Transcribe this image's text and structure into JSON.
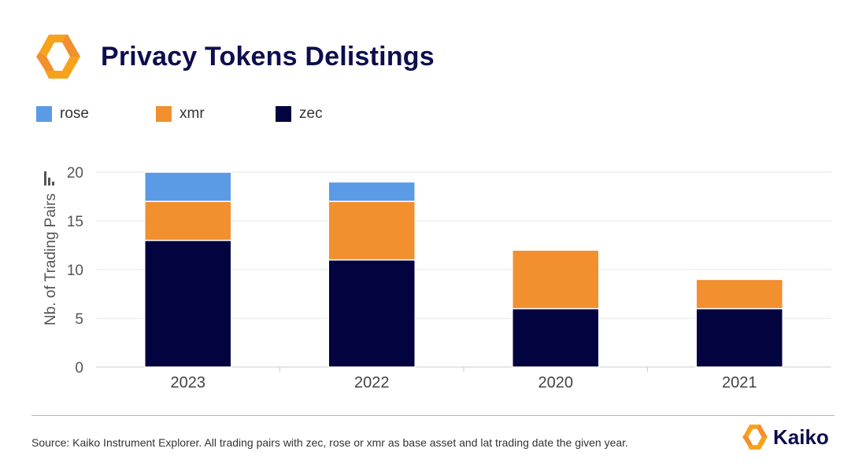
{
  "header": {
    "title": "Privacy Tokens Delistings",
    "logo_icon": "kaiko-logo-icon"
  },
  "colors": {
    "rose": "#5b9be6",
    "xmr": "#f28f2e",
    "zec": "#03033f",
    "title": "#0d0d4f",
    "axis_text": "#555555",
    "grid": "#e6e6e6"
  },
  "legend": [
    {
      "label": "rose",
      "color": "#5b9be6"
    },
    {
      "label": "xmr",
      "color": "#f28f2e"
    },
    {
      "label": "zec",
      "color": "#03033f"
    }
  ],
  "chart_data": {
    "type": "bar",
    "stacked": true,
    "categories": [
      "2023",
      "2022",
      "2020",
      "2021"
    ],
    "series": [
      {
        "name": "zec",
        "values": [
          13,
          11,
          6,
          6
        ],
        "color": "#03033f"
      },
      {
        "name": "xmr",
        "values": [
          4,
          6,
          6,
          3
        ],
        "color": "#f28f2e"
      },
      {
        "name": "rose",
        "values": [
          3,
          2,
          0,
          0
        ],
        "color": "#5b9be6"
      }
    ],
    "ylabel": "Nb. of Trading Pairs",
    "ylim": [
      0,
      20
    ],
    "yticks": [
      0,
      5,
      10,
      15,
      20
    ],
    "grid": true,
    "legend_position": "top-left"
  },
  "footer": {
    "source": "Source: Kaiko Instrument Explorer. All trading pairs with zec, rose or xmr as base asset and lat trading date the given year.",
    "brand_name": "Kaiko"
  }
}
